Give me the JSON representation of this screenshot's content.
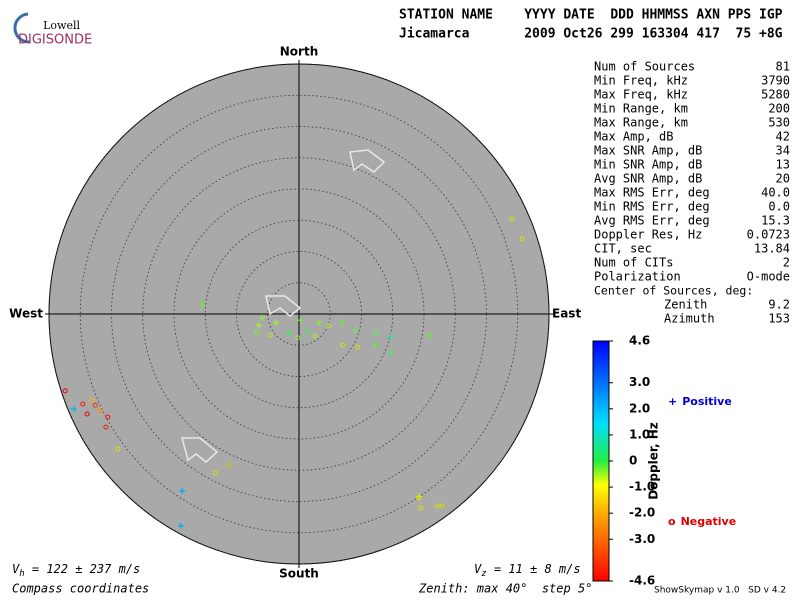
{
  "logo": {
    "top": "Lowell",
    "bottom": "DIGISONDE"
  },
  "header": {
    "line1": "STATION NAME    YYYY DATE  DDD HHMMSS AXN PPS IGP",
    "line2": "Jicamarca       2009 Oct26 299 163304 417  75 +8G"
  },
  "stats": [
    [
      "Num of Sources",
      "81"
    ],
    [
      "Min Freq, kHz",
      "3790"
    ],
    [
      "Max Freq, kHz",
      "5280"
    ],
    [
      "Min Range, km",
      "200"
    ],
    [
      "Max Range, km",
      "530"
    ],
    [
      "Max Amp, dB",
      "42"
    ],
    [
      "Max SNR Amp, dB",
      "34"
    ],
    [
      "Min SNR Amp, dB",
      "13"
    ],
    [
      "Avg SNR Amp, dB",
      "20"
    ],
    [
      "Max RMS Err, deg",
      "40.0"
    ],
    [
      "Min RMS Err, deg",
      "0.0"
    ],
    [
      "Avg RMS Err, deg",
      "15.3"
    ],
    [
      "Doppler Res, Hz",
      "0.0723"
    ],
    [
      "CIT, sec",
      "13.84"
    ],
    [
      "Num of CITs",
      "2"
    ],
    [
      "Polarization",
      "O-mode"
    ]
  ],
  "center": {
    "title": "Center of Sources, deg:",
    "rows": [
      [
        "Zenith",
        "9.2"
      ],
      [
        "Azimuth",
        "153"
      ]
    ]
  },
  "footer": {
    "vh": [
      "V",
      "h",
      " = 122 ± 237 m/s"
    ],
    "vz": [
      "V",
      "z",
      " = 11 ± 8 m/s"
    ],
    "coords": "Compass coordinates",
    "zenith": "Zenith: max 40°  step 5°",
    "version": "ShowSkymap v 1.0   SD v 4.2"
  },
  "chart_data": {
    "type": "scatter",
    "subtype": "polar",
    "directions": {
      "north": "North",
      "south": "South",
      "east": "East",
      "west": "West"
    },
    "xlim": [
      -40,
      40
    ],
    "ylim": [
      -40,
      40
    ],
    "rlim": [
      0,
      40
    ],
    "rticks": [
      5,
      10,
      15,
      20,
      25,
      30,
      35,
      40
    ],
    "series": [
      {
        "name": "Positive",
        "marker": "+",
        "color": "#0000cc",
        "x": [
          -15.5,
          -36,
          -18.7,
          -18.9,
          -5.9,
          -3.7,
          -1.6,
          0.2,
          3.2,
          6.9,
          9,
          12.3,
          14.6,
          20.8,
          14.7,
          12.2,
          19.2,
          -6.4,
          1.4
        ],
        "y": [
          1.6,
          -15.2,
          -28.3,
          -33.9,
          -0.6,
          -1.4,
          -3,
          -1,
          -1.4,
          -1.3,
          -2.6,
          -3,
          -3.7,
          -3.5,
          -6.1,
          -5,
          -29.2,
          -1.8,
          -2.8
        ],
        "point_colors": [
          "#66ee33",
          "#00bbdd",
          "#00aaee",
          "#00aaee",
          "#88ee33",
          "#99ee33",
          "#44ee66",
          "#66ee33",
          "#88ee33",
          "#66ee33",
          "#66ee44",
          "#55ee55",
          "#33ddaa",
          "#66ee33",
          "#44ee66",
          "#66ee33",
          "#ccee00",
          "#aaee22",
          "#44ee66"
        ]
      },
      {
        "name": "Negative",
        "marker": "o",
        "color": "#dd0000",
        "x": [
          34.1,
          35.7,
          -37.4,
          -34.6,
          -33.9,
          -32.6,
          -31.8,
          -30.6,
          -30.9,
          -29,
          -11.2,
          -13.4,
          19.2,
          19.5,
          22.1,
          22.9,
          -6.7,
          -4.6,
          -0.2,
          2.6,
          7,
          9.4,
          4.8,
          -33.2
        ],
        "y": [
          15.2,
          12,
          -12.3,
          -14.4,
          -16,
          -14.6,
          -15.5,
          -16.5,
          -18.1,
          -21.6,
          -24.2,
          -25.4,
          -29.4,
          -31,
          -30.7,
          -30.7,
          -3,
          -3.4,
          -3.8,
          -3.5,
          -5,
          -5.3,
          -1.9,
          -13.8
        ],
        "point_colors": [
          "#dddd00",
          "#dddd00",
          "#ee0000",
          "#ee2200",
          "#ee0000",
          "#ee3300",
          "#ff8800",
          "#ee1100",
          "#ee2200",
          "#dddd00",
          "#cccc00",
          "#dddd00",
          "#dddd00",
          "#dddd00",
          "#dddd00",
          "#dddd00",
          "#88ee33",
          "#aaee22",
          "#88ee33",
          "#aaee22",
          "#dddd00",
          "#dddd00",
          "#bbee11",
          "#ffaa00"
        ]
      }
    ],
    "colorbar": {
      "label": "Doppler, Hz",
      "lim": [
        -4.6,
        4.6
      ],
      "ticks": [
        4.6,
        {
          "value": 3,
          "label": "3.0"
        },
        {
          "value": 2,
          "label": "2.0"
        },
        {
          "value": 1,
          "label": "1.0"
        },
        0,
        {
          "value": -1,
          "label": "-1.0"
        },
        {
          "value": -2,
          "label": "-2.0"
        },
        {
          "value": -3,
          "label": "-3.0"
        },
        -4.6
      ]
    }
  }
}
